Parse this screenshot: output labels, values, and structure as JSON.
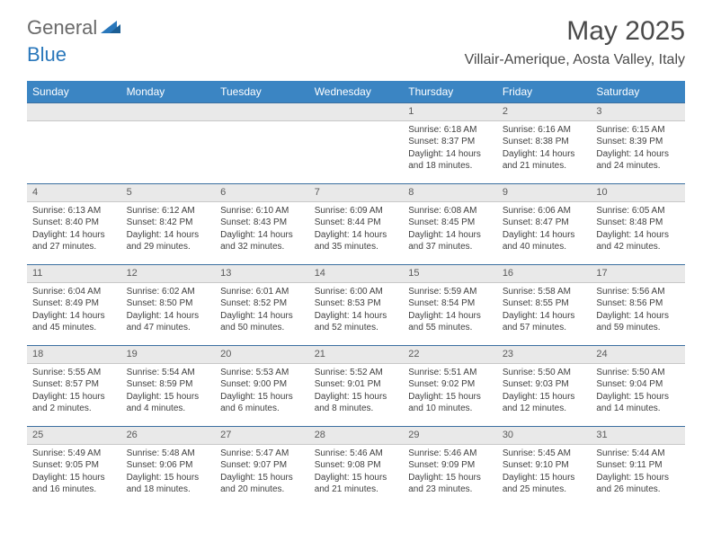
{
  "logo": {
    "part1": "General",
    "part2": "Blue"
  },
  "title": "May 2025",
  "location": "Villair-Amerique, Aosta Valley, Italy",
  "colors": {
    "header_bg": "#3b85c3",
    "header_text": "#ffffff",
    "daynum_bg": "#e9e9e9",
    "rule": "#3b6fa0",
    "body_text": "#404040",
    "logo_gray": "#6a6a6a",
    "logo_blue": "#2977bb"
  },
  "day_headers": [
    "Sunday",
    "Monday",
    "Tuesday",
    "Wednesday",
    "Thursday",
    "Friday",
    "Saturday"
  ],
  "weeks": [
    [
      {
        "n": "",
        "sunrise": "",
        "sunset": "",
        "daylight": ""
      },
      {
        "n": "",
        "sunrise": "",
        "sunset": "",
        "daylight": ""
      },
      {
        "n": "",
        "sunrise": "",
        "sunset": "",
        "daylight": ""
      },
      {
        "n": "",
        "sunrise": "",
        "sunset": "",
        "daylight": ""
      },
      {
        "n": "1",
        "sunrise": "Sunrise: 6:18 AM",
        "sunset": "Sunset: 8:37 PM",
        "daylight": "Daylight: 14 hours and 18 minutes."
      },
      {
        "n": "2",
        "sunrise": "Sunrise: 6:16 AM",
        "sunset": "Sunset: 8:38 PM",
        "daylight": "Daylight: 14 hours and 21 minutes."
      },
      {
        "n": "3",
        "sunrise": "Sunrise: 6:15 AM",
        "sunset": "Sunset: 8:39 PM",
        "daylight": "Daylight: 14 hours and 24 minutes."
      }
    ],
    [
      {
        "n": "4",
        "sunrise": "Sunrise: 6:13 AM",
        "sunset": "Sunset: 8:40 PM",
        "daylight": "Daylight: 14 hours and 27 minutes."
      },
      {
        "n": "5",
        "sunrise": "Sunrise: 6:12 AM",
        "sunset": "Sunset: 8:42 PM",
        "daylight": "Daylight: 14 hours and 29 minutes."
      },
      {
        "n": "6",
        "sunrise": "Sunrise: 6:10 AM",
        "sunset": "Sunset: 8:43 PM",
        "daylight": "Daylight: 14 hours and 32 minutes."
      },
      {
        "n": "7",
        "sunrise": "Sunrise: 6:09 AM",
        "sunset": "Sunset: 8:44 PM",
        "daylight": "Daylight: 14 hours and 35 minutes."
      },
      {
        "n": "8",
        "sunrise": "Sunrise: 6:08 AM",
        "sunset": "Sunset: 8:45 PM",
        "daylight": "Daylight: 14 hours and 37 minutes."
      },
      {
        "n": "9",
        "sunrise": "Sunrise: 6:06 AM",
        "sunset": "Sunset: 8:47 PM",
        "daylight": "Daylight: 14 hours and 40 minutes."
      },
      {
        "n": "10",
        "sunrise": "Sunrise: 6:05 AM",
        "sunset": "Sunset: 8:48 PM",
        "daylight": "Daylight: 14 hours and 42 minutes."
      }
    ],
    [
      {
        "n": "11",
        "sunrise": "Sunrise: 6:04 AM",
        "sunset": "Sunset: 8:49 PM",
        "daylight": "Daylight: 14 hours and 45 minutes."
      },
      {
        "n": "12",
        "sunrise": "Sunrise: 6:02 AM",
        "sunset": "Sunset: 8:50 PM",
        "daylight": "Daylight: 14 hours and 47 minutes."
      },
      {
        "n": "13",
        "sunrise": "Sunrise: 6:01 AM",
        "sunset": "Sunset: 8:52 PM",
        "daylight": "Daylight: 14 hours and 50 minutes."
      },
      {
        "n": "14",
        "sunrise": "Sunrise: 6:00 AM",
        "sunset": "Sunset: 8:53 PM",
        "daylight": "Daylight: 14 hours and 52 minutes."
      },
      {
        "n": "15",
        "sunrise": "Sunrise: 5:59 AM",
        "sunset": "Sunset: 8:54 PM",
        "daylight": "Daylight: 14 hours and 55 minutes."
      },
      {
        "n": "16",
        "sunrise": "Sunrise: 5:58 AM",
        "sunset": "Sunset: 8:55 PM",
        "daylight": "Daylight: 14 hours and 57 minutes."
      },
      {
        "n": "17",
        "sunrise": "Sunrise: 5:56 AM",
        "sunset": "Sunset: 8:56 PM",
        "daylight": "Daylight: 14 hours and 59 minutes."
      }
    ],
    [
      {
        "n": "18",
        "sunrise": "Sunrise: 5:55 AM",
        "sunset": "Sunset: 8:57 PM",
        "daylight": "Daylight: 15 hours and 2 minutes."
      },
      {
        "n": "19",
        "sunrise": "Sunrise: 5:54 AM",
        "sunset": "Sunset: 8:59 PM",
        "daylight": "Daylight: 15 hours and 4 minutes."
      },
      {
        "n": "20",
        "sunrise": "Sunrise: 5:53 AM",
        "sunset": "Sunset: 9:00 PM",
        "daylight": "Daylight: 15 hours and 6 minutes."
      },
      {
        "n": "21",
        "sunrise": "Sunrise: 5:52 AM",
        "sunset": "Sunset: 9:01 PM",
        "daylight": "Daylight: 15 hours and 8 minutes."
      },
      {
        "n": "22",
        "sunrise": "Sunrise: 5:51 AM",
        "sunset": "Sunset: 9:02 PM",
        "daylight": "Daylight: 15 hours and 10 minutes."
      },
      {
        "n": "23",
        "sunrise": "Sunrise: 5:50 AM",
        "sunset": "Sunset: 9:03 PM",
        "daylight": "Daylight: 15 hours and 12 minutes."
      },
      {
        "n": "24",
        "sunrise": "Sunrise: 5:50 AM",
        "sunset": "Sunset: 9:04 PM",
        "daylight": "Daylight: 15 hours and 14 minutes."
      }
    ],
    [
      {
        "n": "25",
        "sunrise": "Sunrise: 5:49 AM",
        "sunset": "Sunset: 9:05 PM",
        "daylight": "Daylight: 15 hours and 16 minutes."
      },
      {
        "n": "26",
        "sunrise": "Sunrise: 5:48 AM",
        "sunset": "Sunset: 9:06 PM",
        "daylight": "Daylight: 15 hours and 18 minutes."
      },
      {
        "n": "27",
        "sunrise": "Sunrise: 5:47 AM",
        "sunset": "Sunset: 9:07 PM",
        "daylight": "Daylight: 15 hours and 20 minutes."
      },
      {
        "n": "28",
        "sunrise": "Sunrise: 5:46 AM",
        "sunset": "Sunset: 9:08 PM",
        "daylight": "Daylight: 15 hours and 21 minutes."
      },
      {
        "n": "29",
        "sunrise": "Sunrise: 5:46 AM",
        "sunset": "Sunset: 9:09 PM",
        "daylight": "Daylight: 15 hours and 23 minutes."
      },
      {
        "n": "30",
        "sunrise": "Sunrise: 5:45 AM",
        "sunset": "Sunset: 9:10 PM",
        "daylight": "Daylight: 15 hours and 25 minutes."
      },
      {
        "n": "31",
        "sunrise": "Sunrise: 5:44 AM",
        "sunset": "Sunset: 9:11 PM",
        "daylight": "Daylight: 15 hours and 26 minutes."
      }
    ]
  ]
}
